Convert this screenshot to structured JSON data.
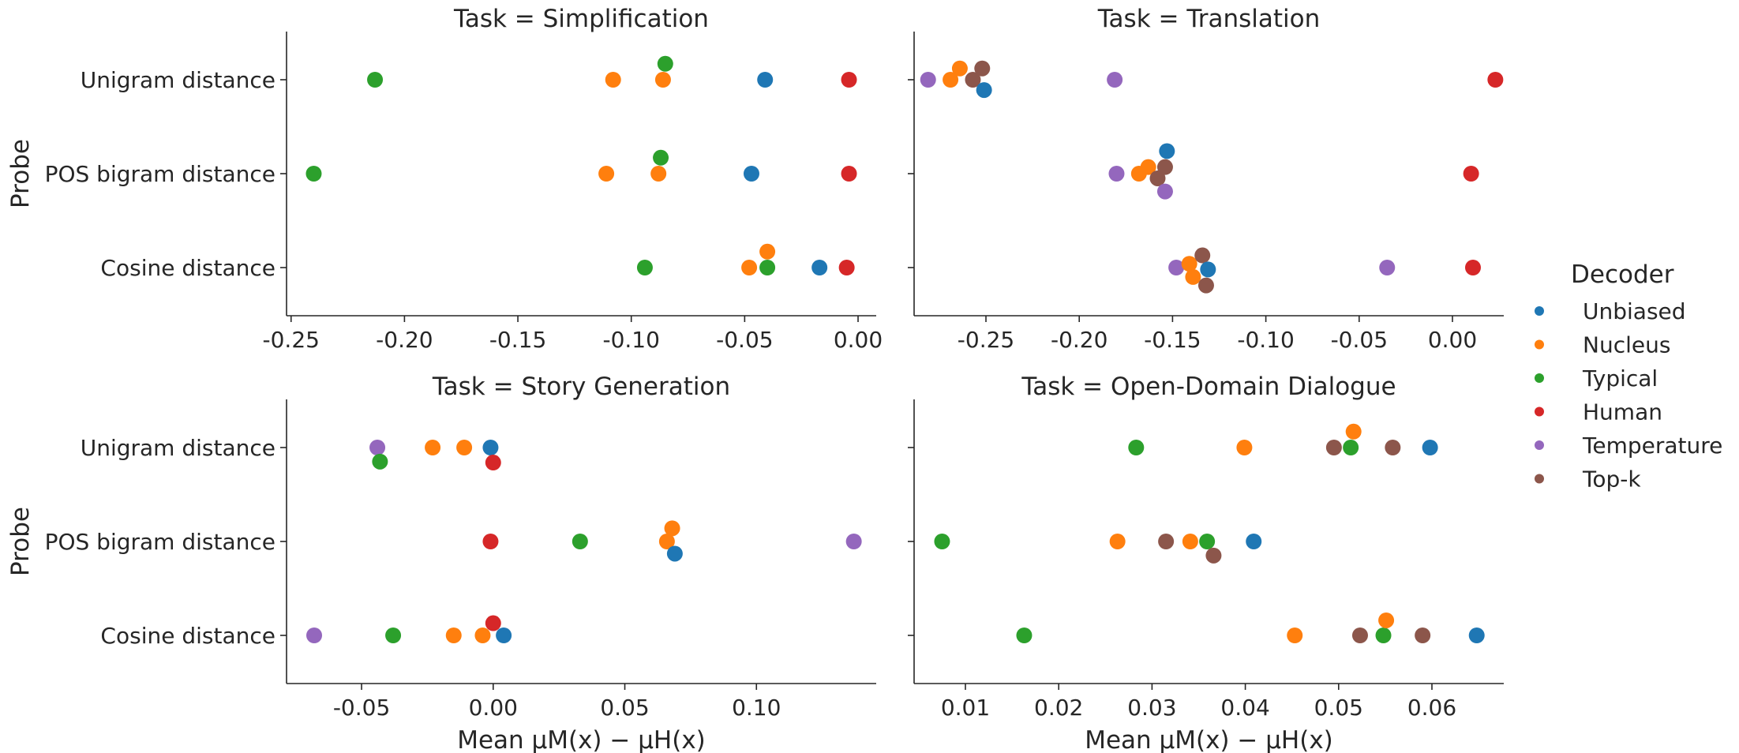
{
  "colors": {
    "Unbiased": "#1f77b4",
    "Nucleus": "#ff7f0e",
    "Typical": "#2ca02c",
    "Human": "#d62728",
    "Temperature": "#9467bd",
    "Top-k": "#8c564b"
  },
  "legend": {
    "title": "Decoder",
    "entries": [
      "Unbiased",
      "Nucleus",
      "Typical",
      "Human",
      "Temperature",
      "Top-k"
    ]
  },
  "chart_data": [
    {
      "type": "scatter",
      "title": "Task = Simplification",
      "xlabel": "",
      "ylabel": "Probe",
      "categories": [
        "Unigram distance",
        "POS bigram distance",
        "Cosine distance"
      ],
      "xlim": [
        -0.252,
        0.008
      ],
      "xticks": [
        -0.25,
        -0.2,
        -0.15,
        -0.1,
        -0.05,
        0.0
      ],
      "xtick_labels": [
        "-0.25",
        "-0.20",
        "-0.15",
        "-0.10",
        "-0.05",
        "0.00"
      ],
      "points": [
        {
          "decoder": "Typical",
          "category": 0,
          "x": -0.213,
          "jitter": 0
        },
        {
          "decoder": "Nucleus",
          "category": 0,
          "x": -0.108,
          "jitter": 0
        },
        {
          "decoder": "Typical",
          "category": 0,
          "x": -0.085,
          "jitter": -0.17
        },
        {
          "decoder": "Nucleus",
          "category": 0,
          "x": -0.086,
          "jitter": 0
        },
        {
          "decoder": "Unbiased",
          "category": 0,
          "x": -0.041,
          "jitter": 0
        },
        {
          "decoder": "Human",
          "category": 0,
          "x": -0.004,
          "jitter": 0
        },
        {
          "decoder": "Typical",
          "category": 1,
          "x": -0.24,
          "jitter": 0
        },
        {
          "decoder": "Nucleus",
          "category": 1,
          "x": -0.111,
          "jitter": 0
        },
        {
          "decoder": "Typical",
          "category": 1,
          "x": -0.087,
          "jitter": -0.17
        },
        {
          "decoder": "Nucleus",
          "category": 1,
          "x": -0.088,
          "jitter": 0
        },
        {
          "decoder": "Unbiased",
          "category": 1,
          "x": -0.047,
          "jitter": 0
        },
        {
          "decoder": "Human",
          "category": 1,
          "x": -0.004,
          "jitter": 0
        },
        {
          "decoder": "Typical",
          "category": 2,
          "x": -0.094,
          "jitter": 0
        },
        {
          "decoder": "Nucleus",
          "category": 2,
          "x": -0.048,
          "jitter": 0
        },
        {
          "decoder": "Nucleus",
          "category": 2,
          "x": -0.04,
          "jitter": -0.17
        },
        {
          "decoder": "Typical",
          "category": 2,
          "x": -0.04,
          "jitter": 0
        },
        {
          "decoder": "Unbiased",
          "category": 2,
          "x": -0.017,
          "jitter": 0
        },
        {
          "decoder": "Human",
          "category": 2,
          "x": -0.005,
          "jitter": 0
        }
      ]
    },
    {
      "type": "scatter",
      "title": "Task = Translation",
      "xlabel": "",
      "ylabel": "",
      "categories": [
        "Unigram distance",
        "POS bigram distance",
        "Cosine distance"
      ],
      "xlim": [
        -0.2885,
        0.0275
      ],
      "xticks": [
        -0.25,
        -0.2,
        -0.15,
        -0.1,
        -0.05,
        0.0
      ],
      "xtick_labels": [
        "-0.25",
        "-0.20",
        "-0.15",
        "-0.10",
        "-0.05",
        "0.00"
      ],
      "points": [
        {
          "decoder": "Temperature",
          "category": 0,
          "x": -0.281,
          "jitter": 0
        },
        {
          "decoder": "Nucleus",
          "category": 0,
          "x": -0.269,
          "jitter": 0
        },
        {
          "decoder": "Nucleus",
          "category": 0,
          "x": -0.264,
          "jitter": -0.12
        },
        {
          "decoder": "Top-k",
          "category": 0,
          "x": -0.257,
          "jitter": 0
        },
        {
          "decoder": "Top-k",
          "category": 0,
          "x": -0.252,
          "jitter": -0.12
        },
        {
          "decoder": "Unbiased",
          "category": 0,
          "x": -0.251,
          "jitter": 0.11
        },
        {
          "decoder": "Temperature",
          "category": 0,
          "x": -0.181,
          "jitter": 0
        },
        {
          "decoder": "Human",
          "category": 0,
          "x": 0.023,
          "jitter": 0
        },
        {
          "decoder": "Temperature",
          "category": 1,
          "x": -0.18,
          "jitter": 0
        },
        {
          "decoder": "Nucleus",
          "category": 1,
          "x": -0.168,
          "jitter": 0
        },
        {
          "decoder": "Nucleus",
          "category": 1,
          "x": -0.163,
          "jitter": -0.07
        },
        {
          "decoder": "Top-k",
          "category": 1,
          "x": -0.158,
          "jitter": 0.05
        },
        {
          "decoder": "Top-k",
          "category": 1,
          "x": -0.154,
          "jitter": -0.07
        },
        {
          "decoder": "Unbiased",
          "category": 1,
          "x": -0.153,
          "jitter": -0.24
        },
        {
          "decoder": "Temperature",
          "category": 1,
          "x": -0.154,
          "jitter": 0.19
        },
        {
          "decoder": "Human",
          "category": 1,
          "x": 0.01,
          "jitter": 0
        },
        {
          "decoder": "Temperature",
          "category": 2,
          "x": -0.148,
          "jitter": 0
        },
        {
          "decoder": "Nucleus",
          "category": 2,
          "x": -0.141,
          "jitter": -0.04
        },
        {
          "decoder": "Top-k",
          "category": 2,
          "x": -0.134,
          "jitter": -0.13
        },
        {
          "decoder": "Unbiased",
          "category": 2,
          "x": -0.131,
          "jitter": 0.02
        },
        {
          "decoder": "Nucleus",
          "category": 2,
          "x": -0.139,
          "jitter": 0.1
        },
        {
          "decoder": "Top-k",
          "category": 2,
          "x": -0.132,
          "jitter": 0.19
        },
        {
          "decoder": "Temperature",
          "category": 2,
          "x": -0.035,
          "jitter": 0
        },
        {
          "decoder": "Human",
          "category": 2,
          "x": 0.011,
          "jitter": 0
        }
      ]
    },
    {
      "type": "scatter",
      "title": "Task = Story Generation",
      "xlabel": "Mean μM(x) − μH(x)",
      "ylabel": "Probe",
      "categories": [
        "Unigram distance",
        "POS bigram distance",
        "Cosine distance"
      ],
      "xlim": [
        -0.0785,
        0.1455
      ],
      "xticks": [
        -0.05,
        0.0,
        0.05,
        0.1
      ],
      "xtick_labels": [
        "-0.05",
        "0.00",
        "0.05",
        "0.10"
      ],
      "points": [
        {
          "decoder": "Temperature",
          "category": 0,
          "x": -0.044,
          "jitter": 0
        },
        {
          "decoder": "Typical",
          "category": 0,
          "x": -0.043,
          "jitter": 0.15
        },
        {
          "decoder": "Nucleus",
          "category": 0,
          "x": -0.023,
          "jitter": 0
        },
        {
          "decoder": "Nucleus",
          "category": 0,
          "x": -0.011,
          "jitter": 0
        },
        {
          "decoder": "Unbiased",
          "category": 0,
          "x": -0.001,
          "jitter": 0
        },
        {
          "decoder": "Human",
          "category": 0,
          "x": 0.0,
          "jitter": 0.16
        },
        {
          "decoder": "Human",
          "category": 1,
          "x": -0.001,
          "jitter": 0
        },
        {
          "decoder": "Typical",
          "category": 1,
          "x": 0.033,
          "jitter": 0
        },
        {
          "decoder": "Nucleus",
          "category": 1,
          "x": 0.066,
          "jitter": 0
        },
        {
          "decoder": "Nucleus",
          "category": 1,
          "x": 0.068,
          "jitter": -0.14
        },
        {
          "decoder": "Unbiased",
          "category": 1,
          "x": 0.069,
          "jitter": 0.13
        },
        {
          "decoder": "Temperature",
          "category": 1,
          "x": 0.137,
          "jitter": 0
        },
        {
          "decoder": "Temperature",
          "category": 2,
          "x": -0.068,
          "jitter": 0
        },
        {
          "decoder": "Typical",
          "category": 2,
          "x": -0.038,
          "jitter": 0
        },
        {
          "decoder": "Nucleus",
          "category": 2,
          "x": -0.015,
          "jitter": 0
        },
        {
          "decoder": "Nucleus",
          "category": 2,
          "x": -0.004,
          "jitter": 0
        },
        {
          "decoder": "Human",
          "category": 2,
          "x": 0.0,
          "jitter": -0.13
        },
        {
          "decoder": "Unbiased",
          "category": 2,
          "x": 0.004,
          "jitter": 0
        }
      ]
    },
    {
      "type": "scatter",
      "title": "Task = Open-Domain Dialogue",
      "xlabel": "Mean μM(x) − μH(x)",
      "ylabel": "",
      "categories": [
        "Unigram distance",
        "POS bigram distance",
        "Cosine distance"
      ],
      "xlim": [
        0.0045,
        0.0677
      ],
      "xticks": [
        0.01,
        0.02,
        0.03,
        0.04,
        0.05,
        0.06
      ],
      "xtick_labels": [
        "0.01",
        "0.02",
        "0.03",
        "0.04",
        "0.05",
        "0.06"
      ],
      "points": [
        {
          "decoder": "Typical",
          "category": 0,
          "x": 0.0283,
          "jitter": 0
        },
        {
          "decoder": "Nucleus",
          "category": 0,
          "x": 0.0399,
          "jitter": 0
        },
        {
          "decoder": "Top-k",
          "category": 0,
          "x": 0.0495,
          "jitter": 0
        },
        {
          "decoder": "Typical",
          "category": 0,
          "x": 0.0513,
          "jitter": 0
        },
        {
          "decoder": "Nucleus",
          "category": 0,
          "x": 0.0516,
          "jitter": -0.17
        },
        {
          "decoder": "Top-k",
          "category": 0,
          "x": 0.0558,
          "jitter": 0
        },
        {
          "decoder": "Unbiased",
          "category": 0,
          "x": 0.0598,
          "jitter": 0
        },
        {
          "decoder": "Typical",
          "category": 1,
          "x": 0.0075,
          "jitter": 0
        },
        {
          "decoder": "Nucleus",
          "category": 1,
          "x": 0.0263,
          "jitter": 0
        },
        {
          "decoder": "Top-k",
          "category": 1,
          "x": 0.0315,
          "jitter": 0
        },
        {
          "decoder": "Nucleus",
          "category": 1,
          "x": 0.0341,
          "jitter": 0
        },
        {
          "decoder": "Typical",
          "category": 1,
          "x": 0.0359,
          "jitter": 0
        },
        {
          "decoder": "Top-k",
          "category": 1,
          "x": 0.0366,
          "jitter": 0.15
        },
        {
          "decoder": "Unbiased",
          "category": 1,
          "x": 0.0409,
          "jitter": 0
        },
        {
          "decoder": "Typical",
          "category": 2,
          "x": 0.0163,
          "jitter": 0
        },
        {
          "decoder": "Nucleus",
          "category": 2,
          "x": 0.0453,
          "jitter": 0
        },
        {
          "decoder": "Top-k",
          "category": 2,
          "x": 0.0523,
          "jitter": 0
        },
        {
          "decoder": "Typical",
          "category": 2,
          "x": 0.0548,
          "jitter": 0
        },
        {
          "decoder": "Nucleus",
          "category": 2,
          "x": 0.0551,
          "jitter": -0.16
        },
        {
          "decoder": "Top-k",
          "category": 2,
          "x": 0.059,
          "jitter": 0
        },
        {
          "decoder": "Unbiased",
          "category": 2,
          "x": 0.0648,
          "jitter": 0
        }
      ]
    }
  ]
}
